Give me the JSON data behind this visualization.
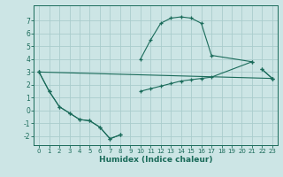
{
  "title": "",
  "xlabel": "Humidex (Indice chaleur)",
  "ylabel": "",
  "background_color": "#cce5e5",
  "grid_color": "#aacccc",
  "line_color": "#1a6b5a",
  "xlim": [
    -0.5,
    23.5
  ],
  "ylim": [
    -2.7,
    8.2
  ],
  "yticks": [
    -2,
    -1,
    0,
    1,
    2,
    3,
    4,
    5,
    6,
    7
  ],
  "xticks": [
    0,
    1,
    2,
    3,
    4,
    5,
    6,
    7,
    8,
    9,
    10,
    11,
    12,
    13,
    14,
    15,
    16,
    17,
    18,
    19,
    20,
    21,
    22,
    23
  ],
  "series0_x": [
    0,
    1,
    2,
    3,
    4,
    5,
    6,
    7,
    8,
    10,
    11,
    12,
    13,
    14,
    15,
    16,
    17,
    21,
    22,
    23
  ],
  "series0_y": [
    3.0,
    1.5,
    0.3,
    -0.2,
    -0.7,
    -0.8,
    -1.3,
    -2.2,
    -1.9,
    4.0,
    5.5,
    6.8,
    7.2,
    7.3,
    7.2,
    6.8,
    4.3,
    3.8,
    3.2,
    2.5
  ],
  "series0_gaps": [
    8,
    17
  ],
  "series1_x": [
    0,
    1,
    2,
    3,
    4,
    5,
    6,
    7,
    8,
    10,
    11,
    12,
    13,
    14,
    15,
    16,
    17,
    21,
    22,
    23
  ],
  "series1_y": [
    3.0,
    1.5,
    0.3,
    -0.2,
    -0.7,
    -0.8,
    -1.3,
    -2.2,
    -1.9,
    1.5,
    1.7,
    1.9,
    2.1,
    2.3,
    2.4,
    2.5,
    2.6,
    3.8,
    3.2,
    2.5
  ],
  "series1_gaps": [
    8,
    17
  ],
  "series2_x": [
    0,
    23
  ],
  "series2_y": [
    3.0,
    2.5
  ]
}
